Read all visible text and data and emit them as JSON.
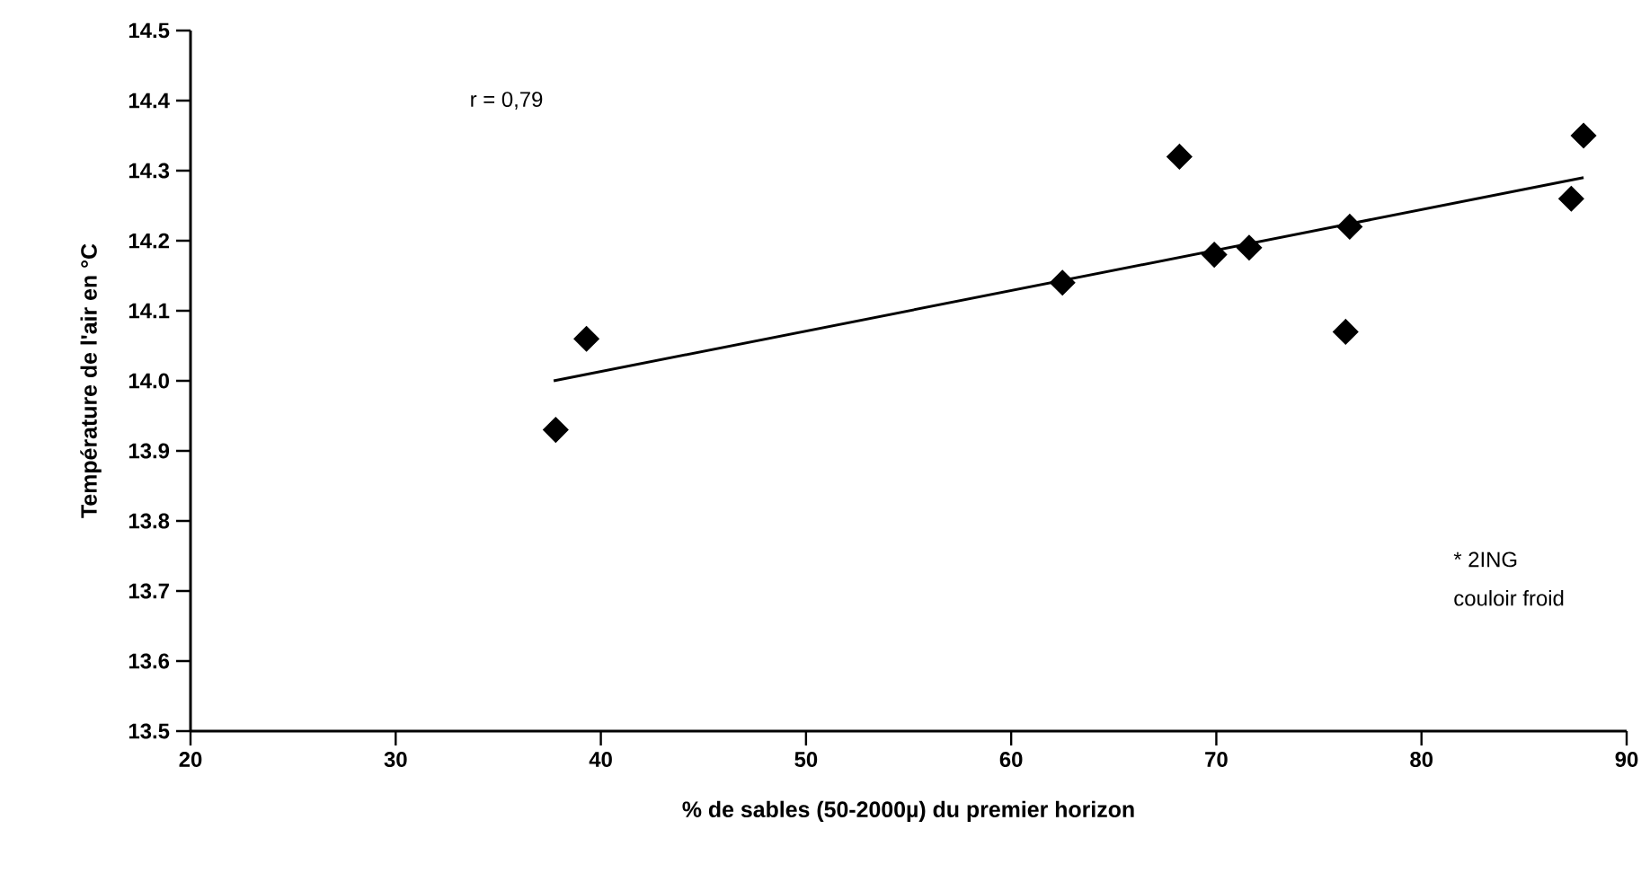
{
  "chart_data": {
    "type": "scatter",
    "xlabel": "% de sables (50-2000µ) du premier horizon",
    "ylabel": "Température de l'air en °C",
    "annotations": [
      "r = 0,79",
      "* 2ING",
      "couloir froid"
    ],
    "marker": "diamond",
    "xlim": [
      20,
      90
    ],
    "xticks": [
      20,
      30,
      40,
      50,
      60,
      70,
      80,
      90
    ],
    "ylim": [
      13.5,
      14.5
    ],
    "yticks": [
      13.5,
      13.6,
      13.7,
      13.8,
      13.9,
      {
        "value": 14,
        "label": "14.0"
      },
      14.1,
      14.2,
      14.3,
      14.4,
      14.5
    ],
    "series": [
      {
        "color": "#000000",
        "x": [
          37.8,
          39.3,
          62.5,
          68.2,
          69.9,
          71.6,
          76.5,
          76.3,
          87.3,
          87.9
        ],
        "values": [
          13.93,
          14.06,
          14.14,
          14.32,
          14.18,
          14.19,
          14.22,
          14.07,
          14.26,
          14.35
        ]
      },
      {
        "type": "line",
        "marker": "none",
        "color": "#000000",
        "x": [
          37.7,
          87.9
        ],
        "values": [
          14.0,
          14.29
        ]
      }
    ]
  }
}
